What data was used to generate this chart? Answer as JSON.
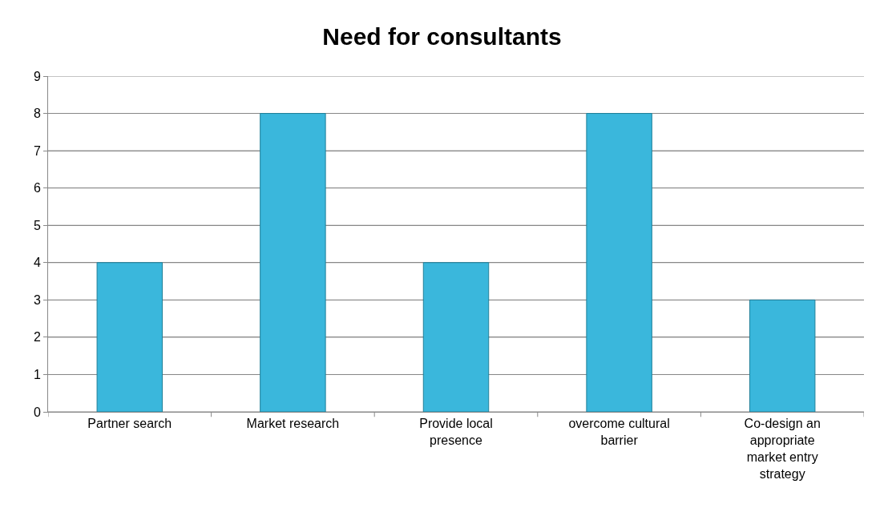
{
  "chart_data": {
    "type": "bar",
    "title": "Need for consultants",
    "categories": [
      "Partner search",
      "Market research",
      "Provide local presence",
      "overcome cultural barrier",
      "Co-design an appropriate market entry strategy"
    ],
    "values": [
      4,
      8,
      4,
      8,
      3
    ],
    "color": "#3ab7dc",
    "ylim": [
      0,
      9
    ],
    "yticks": [
      0,
      1,
      2,
      3,
      4,
      5,
      6,
      7,
      8,
      9
    ],
    "grid": "y"
  }
}
